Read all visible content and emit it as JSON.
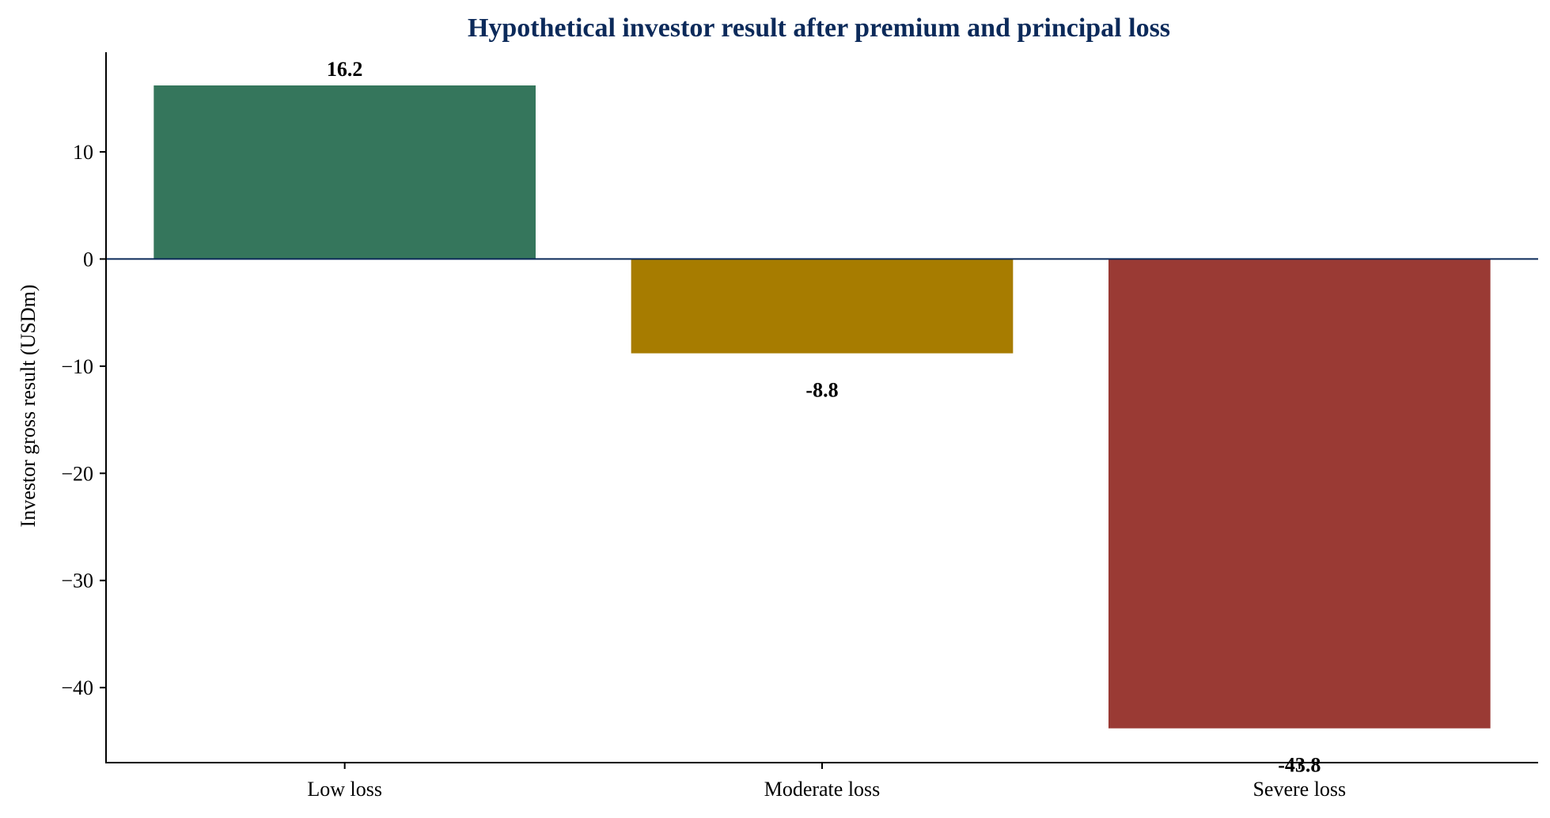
{
  "chart_data": {
    "type": "bar",
    "title": "Hypothetical investor result after premium and principal loss",
    "xlabel": "",
    "ylabel": "Investor gross result (USDm)",
    "categories": [
      "Low loss",
      "Moderate loss",
      "Severe loss"
    ],
    "values": [
      16.2,
      -8.8,
      -43.8
    ],
    "value_labels": [
      "16.2",
      "-8.8",
      "-43.8"
    ],
    "colors": [
      "#35765c",
      "#a77c00",
      "#9a3a34"
    ],
    "ylim": [
      -47,
      19.3
    ],
    "yticks": [
      10,
      0,
      -10,
      -20,
      -30,
      -40
    ],
    "ytick_labels": [
      "10",
      "0",
      "−10",
      "−20",
      "−30",
      "−40"
    ],
    "grid": false,
    "legend": "none",
    "title_color": "#0c2a5a",
    "zero_line_color": "#0c2a5a"
  }
}
